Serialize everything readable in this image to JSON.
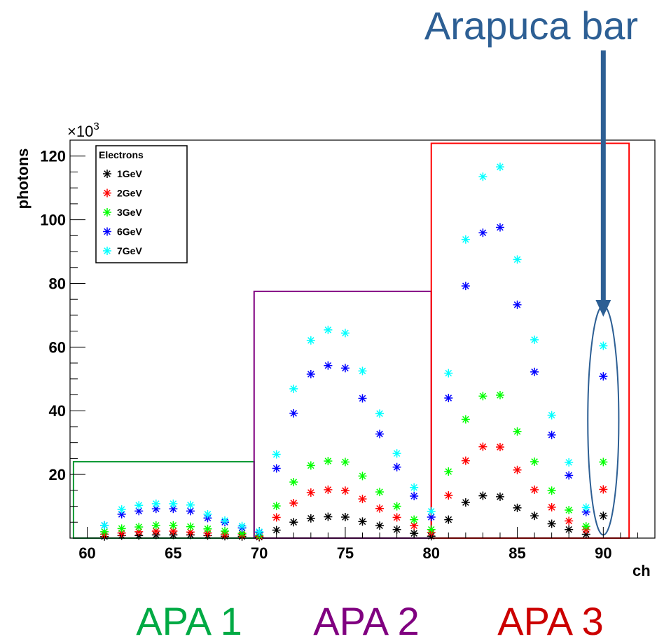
{
  "chart_data": {
    "type": "scatter",
    "marker": "asterisk",
    "xlabel": "ch",
    "ylabel": "photons",
    "y_scale_label": "×10",
    "y_scale_exponent": "3",
    "xlim": [
      59,
      93
    ],
    "ylim": [
      0,
      125
    ],
    "x_ticks": [
      60,
      65,
      70,
      75,
      80,
      85,
      90
    ],
    "y_ticks": [
      20,
      40,
      60,
      80,
      100,
      120
    ],
    "legend": {
      "title": "Electrons",
      "position": "top-left"
    },
    "series": [
      {
        "name": "1GeV",
        "color": "#000000",
        "x": [
          61,
          62,
          63,
          64,
          65,
          66,
          67,
          68,
          69,
          70,
          71,
          72,
          73,
          74,
          75,
          76,
          77,
          78,
          79,
          80,
          81,
          82,
          83,
          84,
          85,
          86,
          87,
          88,
          89,
          90
        ],
        "y": [
          0.5,
          0.8,
          0.8,
          1.0,
          1.0,
          1.0,
          0.8,
          0.6,
          0.5,
          0.3,
          2.5,
          5.0,
          6.2,
          6.7,
          6.6,
          5.2,
          3.9,
          2.7,
          1.5,
          0.6,
          5.8,
          11.2,
          13.3,
          13.0,
          9.5,
          7.0,
          4.5,
          2.7,
          1.2,
          7.0
        ]
      },
      {
        "name": "2GeV",
        "color": "#ff0000",
        "x": [
          61,
          62,
          63,
          64,
          65,
          66,
          67,
          68,
          69,
          70,
          71,
          72,
          73,
          74,
          75,
          76,
          77,
          78,
          79,
          80,
          81,
          82,
          83,
          84,
          85,
          86,
          87,
          88,
          89,
          90
        ],
        "y": [
          1.2,
          1.6,
          2.0,
          2.2,
          2.2,
          1.9,
          1.6,
          1.2,
          1.0,
          0.6,
          6.5,
          11.0,
          14.3,
          15.2,
          14.9,
          12.3,
          9.3,
          6.5,
          3.9,
          1.7,
          13.4,
          24.3,
          28.7,
          28.6,
          21.4,
          15.2,
          9.7,
          5.4,
          2.6,
          15.3
        ]
      },
      {
        "name": "3GeV",
        "color": "#00ff00",
        "x": [
          61,
          62,
          63,
          64,
          65,
          66,
          67,
          68,
          69,
          70,
          71,
          72,
          73,
          74,
          75,
          76,
          77,
          78,
          79,
          80,
          81,
          82,
          83,
          84,
          85,
          86,
          87,
          88,
          89,
          90
        ],
        "y": [
          2.0,
          3.0,
          3.5,
          4.0,
          4.0,
          3.6,
          2.9,
          2.2,
          1.5,
          0.9,
          10.1,
          17.6,
          22.8,
          24.2,
          23.9,
          19.5,
          14.5,
          10.0,
          5.8,
          2.7,
          20.9,
          37.3,
          44.6,
          44.9,
          33.5,
          24.0,
          14.9,
          8.8,
          3.7,
          23.9
        ]
      },
      {
        "name": "6GeV",
        "color": "#0000ff",
        "x": [
          61,
          62,
          63,
          64,
          65,
          66,
          67,
          68,
          69,
          70,
          71,
          72,
          73,
          74,
          75,
          76,
          77,
          78,
          79,
          80,
          81,
          82,
          83,
          84,
          85,
          86,
          87,
          88,
          89,
          90
        ],
        "y": [
          4.0,
          7.5,
          8.5,
          9.2,
          9.2,
          8.5,
          6.3,
          5.0,
          3.2,
          1.8,
          21.9,
          39.2,
          51.5,
          54.2,
          53.4,
          43.9,
          32.7,
          22.3,
          13.2,
          6.6,
          44.0,
          79.2,
          95.9,
          97.6,
          73.3,
          52.2,
          32.4,
          19.7,
          8.2,
          50.8
        ]
      },
      {
        "name": "7GeV",
        "color": "#00ffff",
        "x": [
          61,
          62,
          63,
          64,
          65,
          66,
          67,
          68,
          69,
          70,
          71,
          72,
          73,
          74,
          75,
          76,
          77,
          78,
          79,
          80,
          81,
          82,
          83,
          84,
          85,
          86,
          87,
          88,
          89,
          90
        ],
        "y": [
          4.0,
          9.0,
          10.3,
          10.8,
          10.8,
          10.4,
          7.5,
          5.5,
          3.8,
          2.0,
          26.3,
          46.9,
          62.1,
          65.4,
          64.4,
          52.5,
          39.1,
          26.6,
          15.9,
          8.4,
          51.8,
          93.8,
          113.5,
          116.6,
          87.5,
          62.3,
          38.6,
          23.8,
          9.6,
          60.4
        ]
      }
    ],
    "annotations": {
      "boxes": [
        {
          "x0": 59.2,
          "x1": 69.7,
          "y0": 0,
          "y1": 24,
          "color": "#009933"
        },
        {
          "x0": 69.7,
          "x1": 80.0,
          "y0": 0,
          "y1": 77.5,
          "color": "#800080"
        },
        {
          "x0": 80.0,
          "x1": 91.5,
          "y0": 0,
          "y1": 124,
          "color": "#ff0000"
        }
      ],
      "highlight_ellipse": {
        "cx": 90,
        "cy": 37,
        "rx": 0.9,
        "ry": 36,
        "color": "#2d5f94"
      },
      "arrow": {
        "x": 90,
        "color": "#2d5f94"
      },
      "arrow_label": "Arapuca bar",
      "group_labels": [
        {
          "text": "APA 1",
          "color": "#00aa44"
        },
        {
          "text": "APA 2",
          "color": "#800080"
        },
        {
          "text": "APA 3",
          "color": "#cc0000"
        }
      ]
    }
  }
}
